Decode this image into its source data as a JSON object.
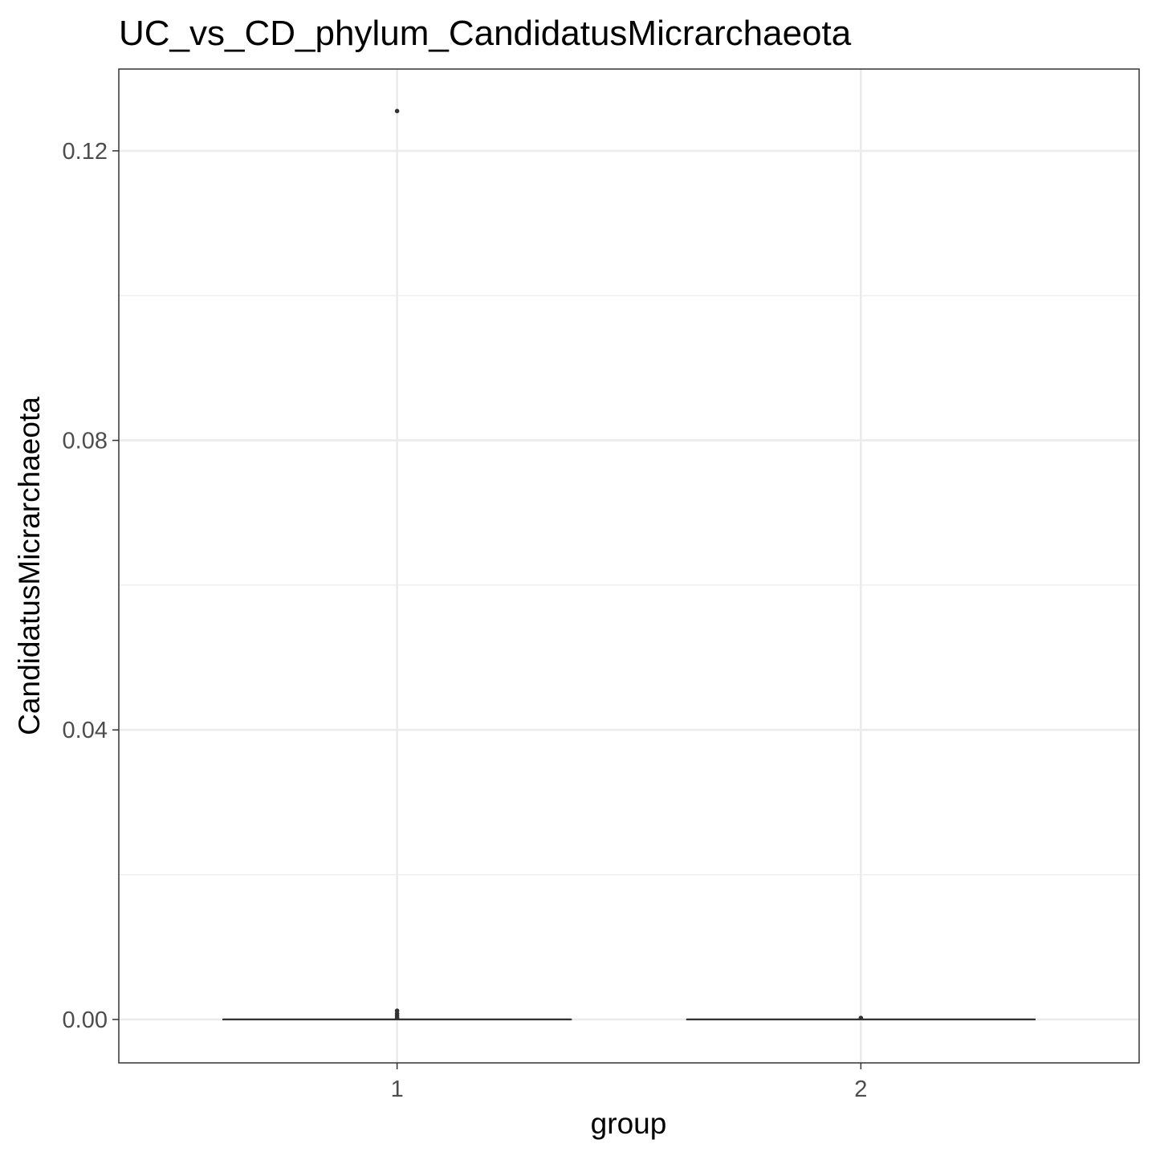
{
  "chart_data": {
    "type": "boxplot",
    "title": "UC_vs_CD_phylum_CandidatusMicrarchaeota",
    "xlabel": "group",
    "ylabel": "CandidatusMicrarchaeota",
    "categories": [
      "1",
      "2"
    ],
    "ylim": [
      -0.006,
      0.1313
    ],
    "y_ticks": [
      0.0,
      0.04,
      0.08,
      0.12
    ],
    "y_tick_labels": [
      "0.00",
      "0.04",
      "0.08",
      "0.12"
    ],
    "y_minor_ticks": [
      0.02,
      0.06,
      0.1
    ],
    "grid": true,
    "theme": "bw",
    "boxes": [
      {
        "category": "1",
        "min": 0,
        "q1": 0,
        "median": 0,
        "q3": 0,
        "max": 0,
        "outliers": [
          0.1255,
          0.0012,
          0.0008,
          0.0005,
          0.0002
        ]
      },
      {
        "category": "2",
        "min": 0,
        "q1": 0,
        "median": 0,
        "q3": 0,
        "max": 0,
        "outliers": [
          0.0002
        ]
      }
    ],
    "colors": {
      "box_line": "#333333",
      "points": "#333333",
      "panel_border": "#333333",
      "grid_major": "#ebebeb",
      "grid_minor": "#ebebeb",
      "tick_label": "#4d4d4d"
    }
  }
}
